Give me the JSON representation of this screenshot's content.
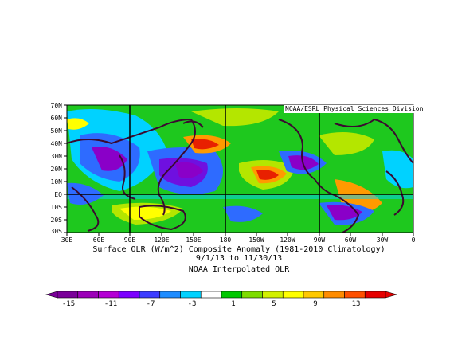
{
  "credit": "NOAA/ESRL Physical Sciences Division",
  "title_line1": "Surface OLR (W/m^2) Composite Anomaly (1981-2010 Climatology)",
  "title_line2": "9/1/13  to 11/30/13",
  "title_line3": "NOAA Interpolated OLR",
  "lat_labels": [
    "70N",
    "60N",
    "50N",
    "40N",
    "30N",
    "20N",
    "10N",
    "EQ",
    "10S",
    "20S",
    "30S"
  ],
  "lon_labels": [
    "30E",
    "60E",
    "90E",
    "120E",
    "150E",
    "180",
    "150W",
    "120W",
    "90W",
    "60W",
    "30W",
    "0"
  ],
  "colorbar": {
    "labels": [
      "-15",
      "-11",
      "-7",
      "-3",
      "1",
      "5",
      "9",
      "13"
    ],
    "colors": [
      "#7a0099",
      "#9c00b8",
      "#b400d4",
      "#7b00ff",
      "#3c3cff",
      "#1e8cff",
      "#00d2ff",
      "#ffffff",
      "#00c800",
      "#7ddc00",
      "#d2f000",
      "#ffff00",
      "#ffc800",
      "#ff8c00",
      "#ff5000",
      "#e60000"
    ]
  },
  "palette": {
    "deep_purple": "#8a00c8",
    "purple": "#6f10e0",
    "blue": "#2e6bff",
    "cyan": "#00d2ff",
    "green": "#1ec81e",
    "yellowgreen": "#b4e600",
    "yellow": "#ffff00",
    "orange": "#ff9a00",
    "red": "#e82000"
  }
}
